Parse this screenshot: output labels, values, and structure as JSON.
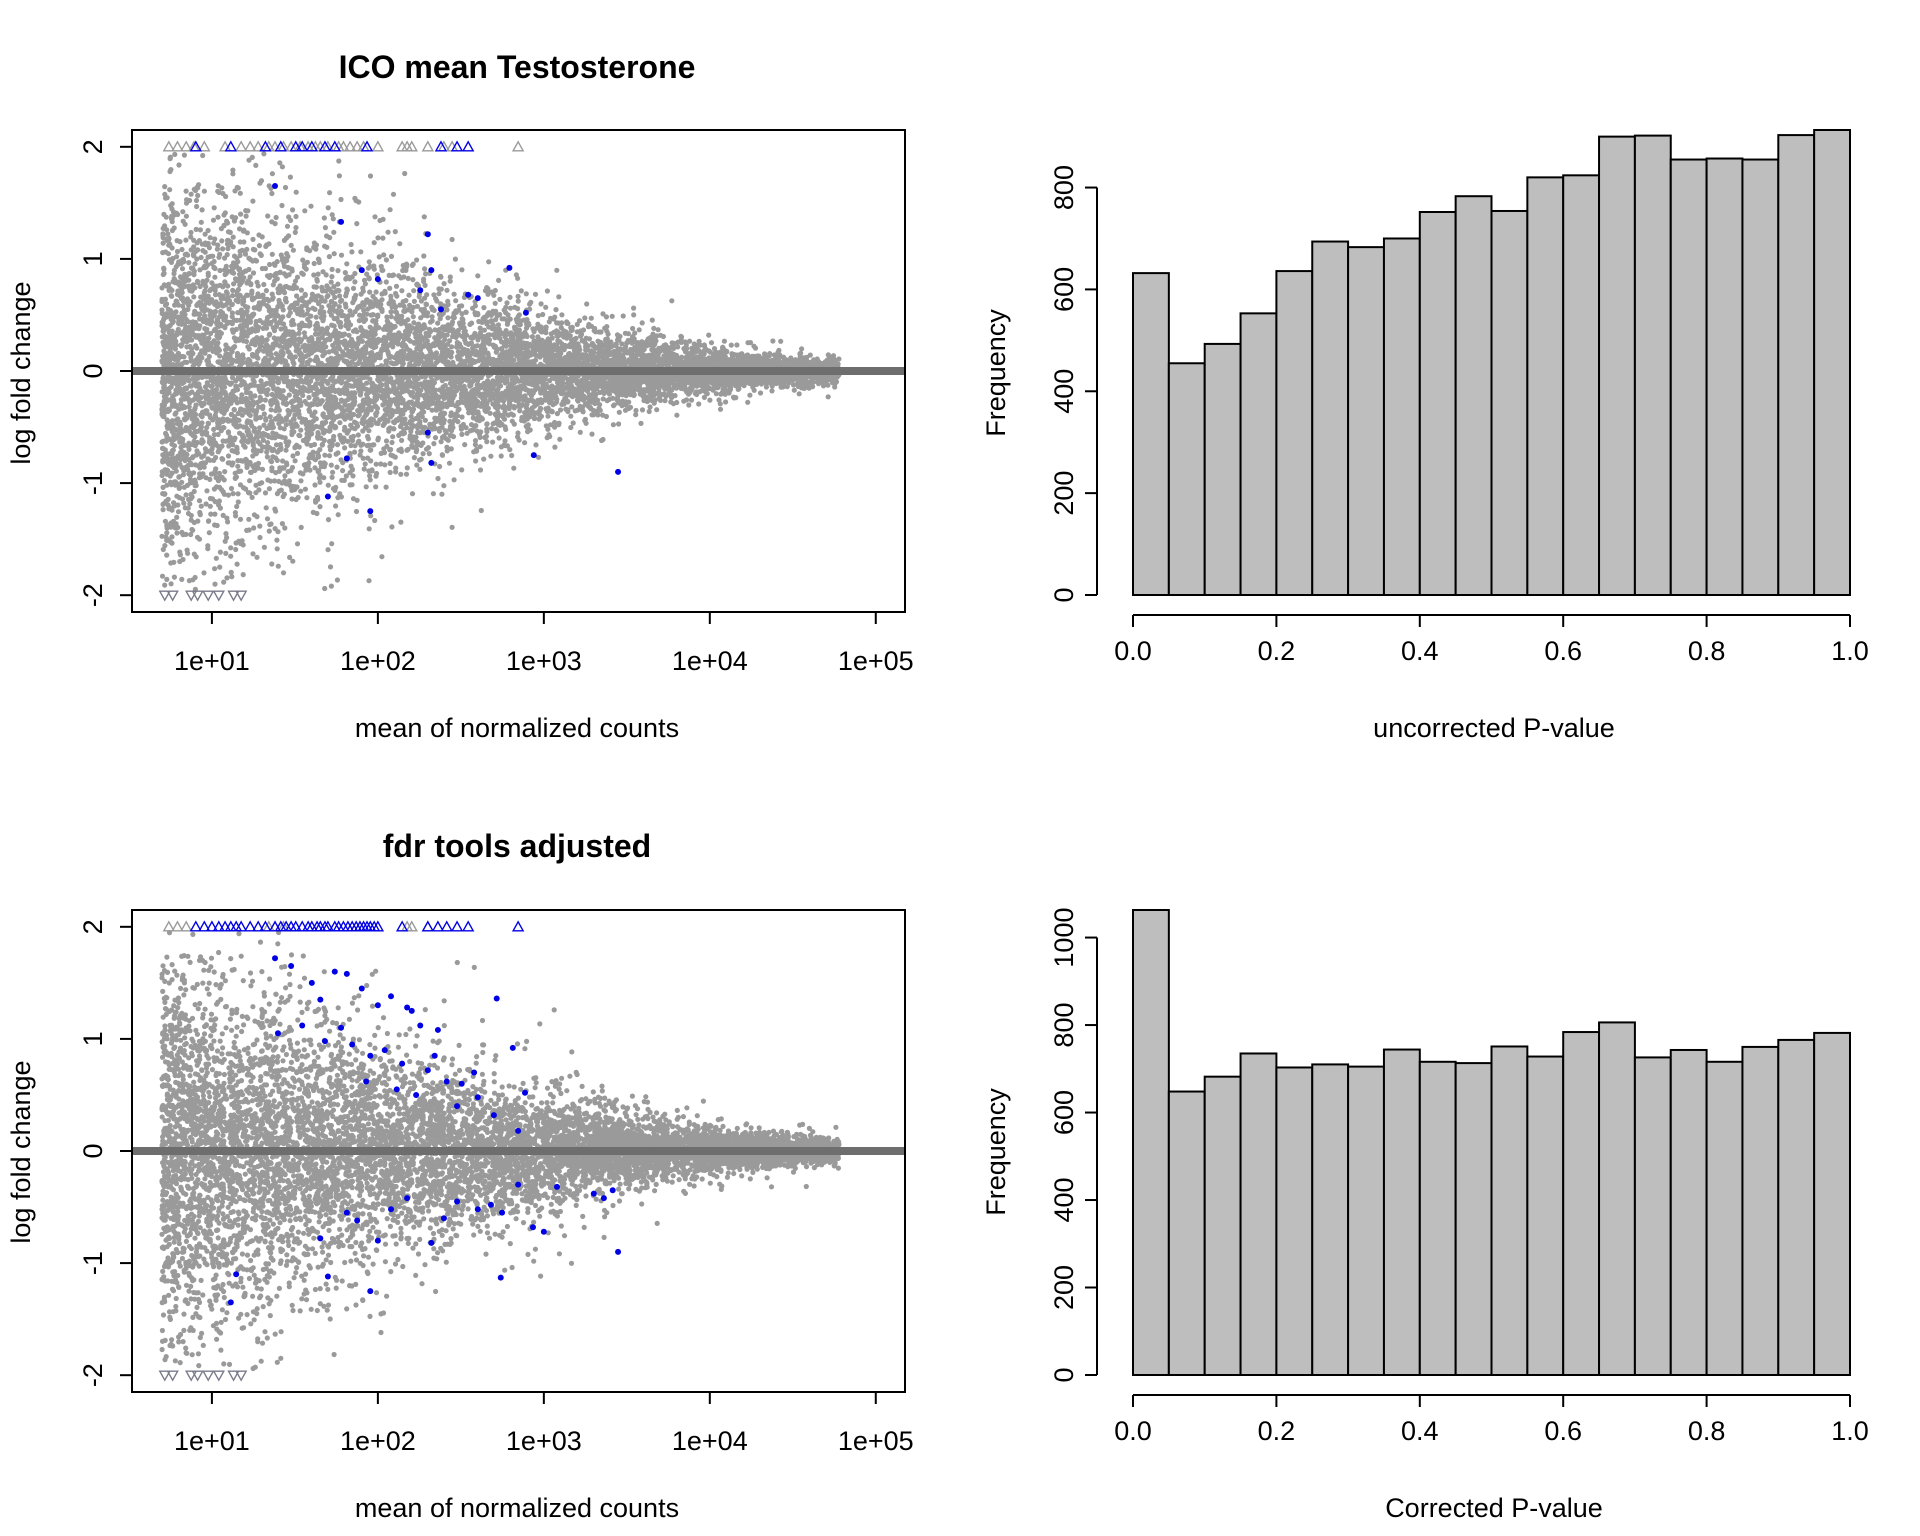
{
  "chart_data": [
    {
      "id": "ma_top",
      "type": "scatter",
      "title": "ICO mean Testosterone",
      "xlabel": "mean of normalized counts",
      "ylabel": "log fold change",
      "x_scale": "log10",
      "xlim": [
        3.3,
        150000
      ],
      "ylim": [
        -2.15,
        2.15
      ],
      "x_ticks": [
        10,
        100,
        1000,
        10000,
        100000
      ],
      "x_tick_labels": [
        "1e+01",
        "1e+02",
        "1e+03",
        "1e+04",
        "1e+05"
      ],
      "y_ticks": [
        -2,
        -1,
        0,
        1,
        2
      ],
      "y_tick_labels": [
        "-2",
        "-1",
        "0",
        "1",
        "2"
      ],
      "grid": false,
      "legend": "none",
      "reference_line_y": 0,
      "colors": {
        "point": "#9a9a9a",
        "highlight": "#0000e6",
        "baseline": "#6e6e6e"
      },
      "background_cloud": {
        "n_points": 9000,
        "x_range": [
          5,
          60000
        ],
        "spread_at_low_counts": 0.8,
        "spread_at_high_counts": 0.05
      },
      "highlight_points": [
        [
          24,
          1.65
        ],
        [
          60,
          1.33
        ],
        [
          80,
          0.9
        ],
        [
          100,
          0.82
        ],
        [
          200,
          1.22
        ],
        [
          210,
          0.9
        ],
        [
          240,
          0.55
        ],
        [
          180,
          0.72
        ],
        [
          350,
          0.68
        ],
        [
          400,
          0.65
        ],
        [
          620,
          0.92
        ],
        [
          780,
          0.52
        ],
        [
          65,
          -0.78
        ],
        [
          50,
          -1.12
        ],
        [
          90,
          -1.25
        ],
        [
          200,
          -0.55
        ],
        [
          210,
          -0.82
        ],
        [
          870,
          -0.75
        ],
        [
          2800,
          -0.9
        ]
      ],
      "clipped_up": {
        "y": 2,
        "gray_x": [
          5.5,
          6.2,
          7,
          7.8,
          9,
          12,
          15,
          17,
          19,
          22,
          24,
          27,
          30,
          34,
          38,
          42,
          45,
          50,
          58,
          62,
          68,
          75,
          82,
          100,
          140,
          150,
          160,
          200,
          250,
          280,
          700
        ],
        "blue_x": [
          8,
          13,
          21,
          26,
          32,
          35,
          40,
          48,
          55,
          86,
          240,
          300,
          350
        ]
      },
      "clipped_down": {
        "y": -2,
        "gray_x": [
          5.2,
          5.8,
          7.5,
          8.2,
          9.5,
          11,
          13.5,
          15
        ]
      }
    },
    {
      "id": "hist_top",
      "type": "bar",
      "title": "",
      "xlabel": "uncorrected P-value",
      "ylabel": "Frequency",
      "bin_edges": [
        0,
        0.05,
        0.1,
        0.15,
        0.2,
        0.25,
        0.3,
        0.35,
        0.4,
        0.45,
        0.5,
        0.55,
        0.6,
        0.65,
        0.7,
        0.75,
        0.8,
        0.85,
        0.9,
        0.95,
        1.0
      ],
      "values": [
        632,
        455,
        493,
        553,
        636,
        694,
        683,
        700,
        752,
        783,
        754,
        820,
        824,
        900,
        902,
        855,
        857,
        855,
        903,
        913
      ],
      "xlim": [
        0,
        1
      ],
      "ylim": [
        0,
        913
      ],
      "x_ticks": [
        0,
        0.2,
        0.4,
        0.6,
        0.8,
        1.0
      ],
      "x_tick_labels": [
        "0.0",
        "0.2",
        "0.4",
        "0.6",
        "0.8",
        "1.0"
      ],
      "y_ticks": [
        0,
        200,
        400,
        600,
        800
      ],
      "y_tick_labels": [
        "0",
        "200",
        "400",
        "600",
        "800"
      ],
      "grid": false,
      "legend": "none",
      "colors": {
        "bar": "#bebebe",
        "edge": "#000000"
      }
    },
    {
      "id": "ma_bottom",
      "type": "scatter",
      "title": "fdr tools adjusted",
      "xlabel": "mean of normalized counts",
      "ylabel": "log fold change",
      "x_scale": "log10",
      "xlim": [
        3.3,
        150000
      ],
      "ylim": [
        -2.15,
        2.15
      ],
      "x_ticks": [
        10,
        100,
        1000,
        10000,
        100000
      ],
      "x_tick_labels": [
        "1e+01",
        "1e+02",
        "1e+03",
        "1e+04",
        "1e+05"
      ],
      "y_ticks": [
        -2,
        -1,
        0,
        1,
        2
      ],
      "y_tick_labels": [
        "-2",
        "-1",
        "0",
        "1",
        "2"
      ],
      "grid": false,
      "legend": "none",
      "reference_line_y": 0,
      "colors": {
        "point": "#9a9a9a",
        "highlight": "#0000e6",
        "baseline": "#6e6e6e"
      },
      "background_cloud": {
        "n_points": 9000,
        "x_range": [
          5,
          60000
        ],
        "spread_at_low_counts": 0.8,
        "spread_at_high_counts": 0.05
      },
      "highlight_points": [
        [
          24,
          1.72
        ],
        [
          30,
          1.65
        ],
        [
          40,
          1.5
        ],
        [
          45,
          1.35
        ],
        [
          55,
          1.6
        ],
        [
          65,
          1.58
        ],
        [
          80,
          1.45
        ],
        [
          100,
          1.3
        ],
        [
          120,
          1.38
        ],
        [
          150,
          1.28
        ],
        [
          180,
          1.12
        ],
        [
          230,
          1.08
        ],
        [
          520,
          1.36
        ],
        [
          650,
          0.92
        ],
        [
          770,
          0.52
        ],
        [
          60,
          1.1
        ],
        [
          70,
          0.95
        ],
        [
          90,
          0.85
        ],
        [
          110,
          0.9
        ],
        [
          140,
          0.78
        ],
        [
          200,
          0.72
        ],
        [
          260,
          0.62
        ],
        [
          320,
          0.6
        ],
        [
          400,
          0.48
        ],
        [
          85,
          0.62
        ],
        [
          130,
          0.55
        ],
        [
          170,
          0.5
        ],
        [
          300,
          0.4
        ],
        [
          500,
          0.32
        ],
        [
          700,
          0.18
        ],
        [
          25,
          1.05
        ],
        [
          35,
          1.12
        ],
        [
          48,
          0.98
        ],
        [
          160,
          1.25
        ],
        [
          220,
          0.85
        ],
        [
          380,
          0.7
        ],
        [
          65,
          -0.55
        ],
        [
          75,
          -0.62
        ],
        [
          90,
          -1.25
        ],
        [
          100,
          -0.8
        ],
        [
          50,
          -1.12
        ],
        [
          45,
          -0.78
        ],
        [
          120,
          -0.52
        ],
        [
          150,
          -0.42
        ],
        [
          210,
          -0.82
        ],
        [
          250,
          -0.6
        ],
        [
          300,
          -0.45
        ],
        [
          400,
          -0.52
        ],
        [
          480,
          -0.48
        ],
        [
          560,
          -0.55
        ],
        [
          860,
          -0.68
        ],
        [
          1000,
          -0.72
        ],
        [
          1200,
          -0.32
        ],
        [
          2000,
          -0.38
        ],
        [
          2300,
          -0.42
        ],
        [
          2600,
          -0.35
        ],
        [
          2800,
          -0.9
        ],
        [
          700,
          -0.3
        ],
        [
          14,
          -1.1
        ],
        [
          13,
          -1.35
        ],
        [
          550,
          -1.13
        ]
      ],
      "clipped_up": {
        "y": 2,
        "gray_x": [
          5.5,
          6.2,
          7,
          22,
          24,
          27,
          150,
          160,
          200
        ],
        "blue_x": [
          8,
          9,
          10,
          11,
          12,
          13,
          14,
          15,
          17,
          19,
          21,
          24,
          26,
          28,
          30,
          32,
          35,
          38,
          40,
          43,
          45,
          48,
          50,
          55,
          58,
          62,
          66,
          70,
          74,
          78,
          82,
          86,
          90,
          95,
          100,
          140,
          200,
          230,
          260,
          300,
          350,
          700
        ]
      },
      "clipped_down": {
        "y": -2,
        "gray_x": [
          5.2,
          5.8,
          7.5,
          8.2,
          9.5,
          11,
          13.5,
          15
        ]
      }
    },
    {
      "id": "hist_bottom",
      "type": "bar",
      "title": "",
      "xlabel": "Corrected P-value",
      "ylabel": "Frequency",
      "bin_edges": [
        0,
        0.05,
        0.1,
        0.15,
        0.2,
        0.25,
        0.3,
        0.35,
        0.4,
        0.45,
        0.5,
        0.55,
        0.6,
        0.65,
        0.7,
        0.75,
        0.8,
        0.85,
        0.9,
        0.95,
        1.0
      ],
      "values": [
        1063,
        648,
        682,
        735,
        703,
        710,
        705,
        744,
        716,
        713,
        751,
        728,
        784,
        806,
        726,
        743,
        716,
        750,
        766,
        782
      ],
      "xlim": [
        0,
        1
      ],
      "ylim": [
        0,
        1063
      ],
      "x_ticks": [
        0,
        0.2,
        0.4,
        0.6,
        0.8,
        1.0
      ],
      "x_tick_labels": [
        "0.0",
        "0.2",
        "0.4",
        "0.6",
        "0.8",
        "1.0"
      ],
      "y_ticks": [
        0,
        200,
        400,
        600,
        800,
        1000
      ],
      "y_tick_labels": [
        "0",
        "200",
        "400",
        "600",
        "800",
        "1000"
      ],
      "grid": false,
      "legend": "none",
      "colors": {
        "bar": "#bebebe",
        "edge": "#000000"
      }
    }
  ]
}
